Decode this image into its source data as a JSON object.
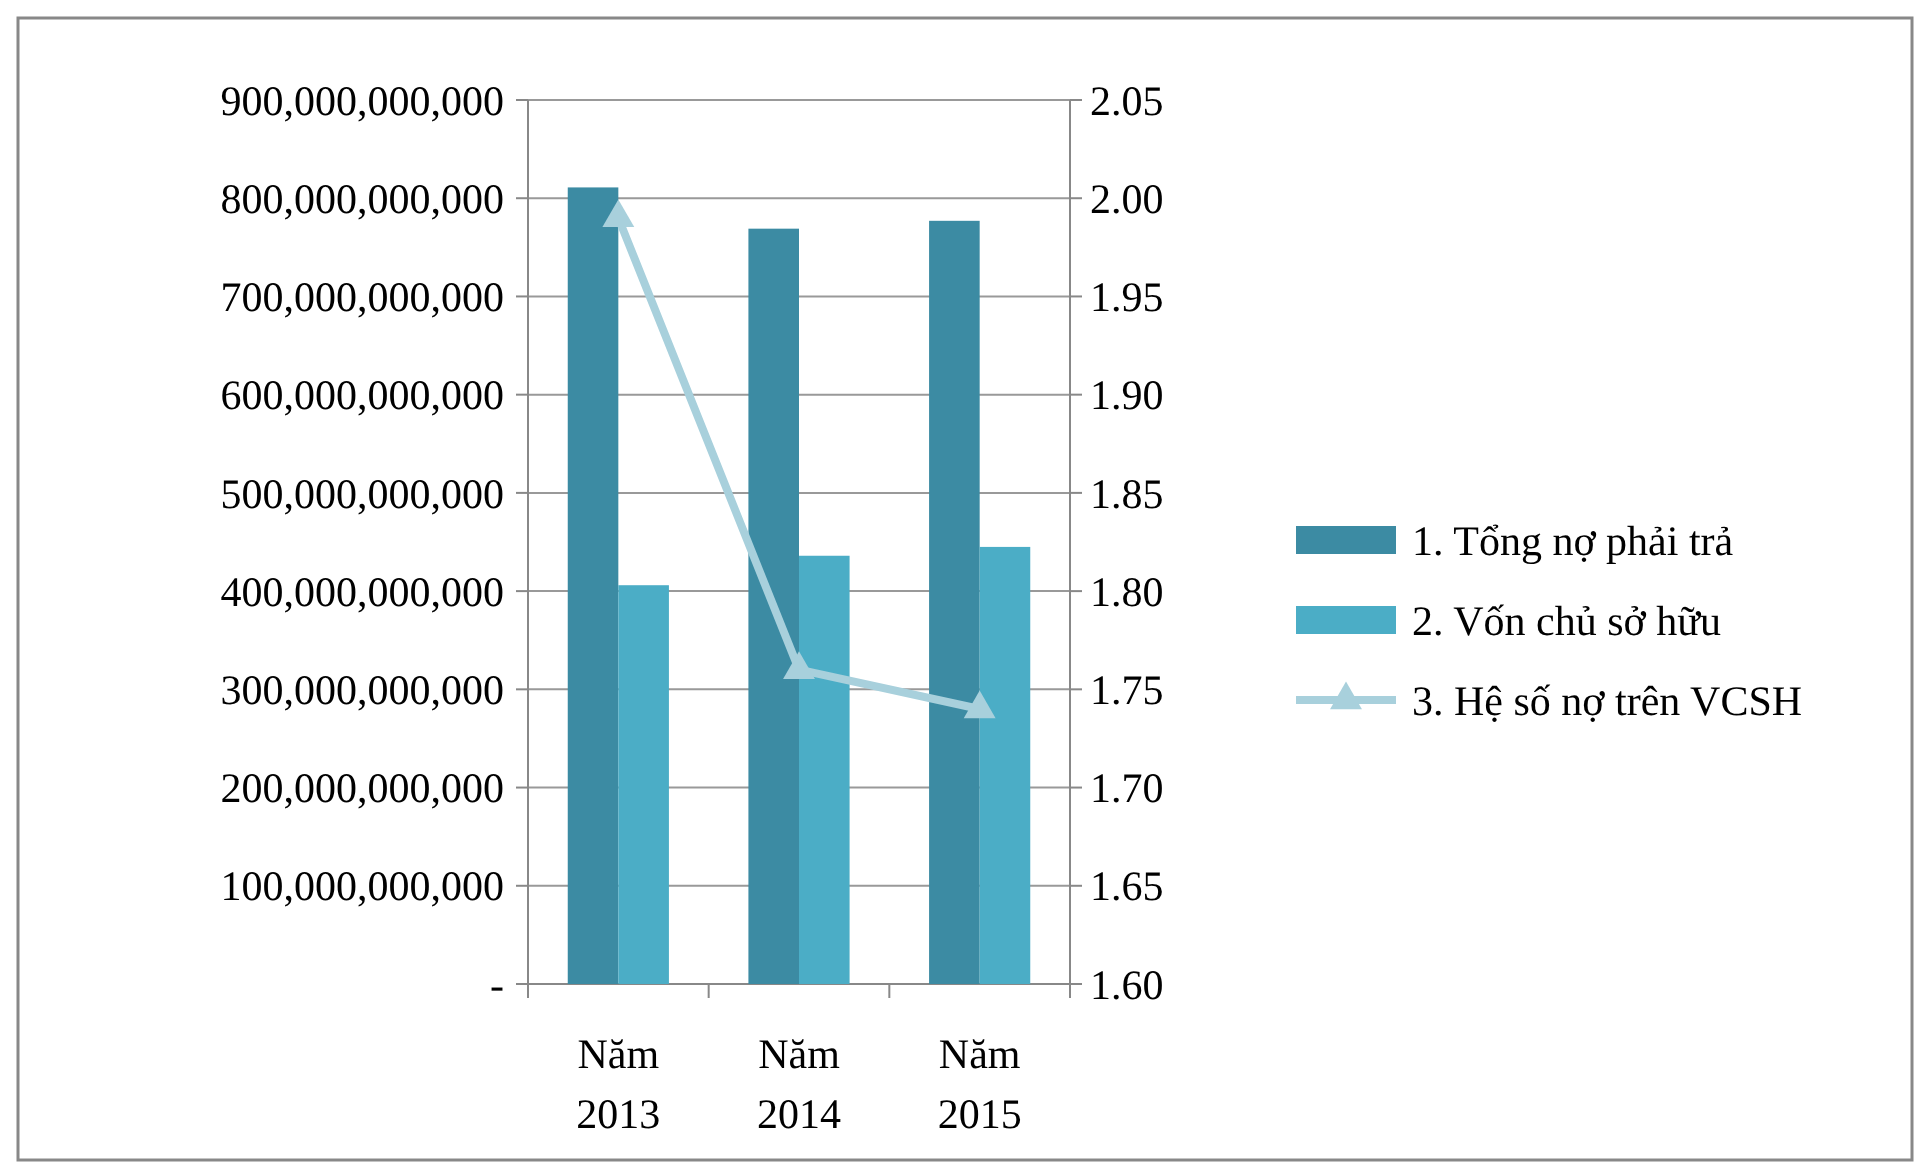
{
  "chart_data": {
    "type": "bar",
    "categories": [
      "Năm 2013",
      "Năm 2014",
      "Năm 2015"
    ],
    "series": [
      {
        "name": "1. Tổng nợ phải trả",
        "color": "#3c8ba3",
        "values": [
          811000000000,
          769000000000,
          777000000000
        ]
      },
      {
        "name": "2. Vốn chủ sở hữu",
        "color": "#4badc6",
        "values": [
          406000000000,
          436000000000,
          445000000000
        ]
      },
      {
        "name": "3. Hệ số nợ trên VCSH",
        "type": "line",
        "axis": "y2",
        "color": "#a8d0dc",
        "marker": "triangle",
        "values": [
          1.99,
          1.76,
          1.74
        ]
      }
    ],
    "ylim": [
      0,
      900000000000
    ],
    "yticks": [
      {
        "value": 0,
        "label": "-"
      },
      {
        "value": 100000000000,
        "label": "100,000,000,000"
      },
      {
        "value": 200000000000,
        "label": "200,000,000,000"
      },
      {
        "value": 300000000000,
        "label": "300,000,000,000"
      },
      {
        "value": 400000000000,
        "label": "400,000,000,000"
      },
      {
        "value": 500000000000,
        "label": "500,000,000,000"
      },
      {
        "value": 600000000000,
        "label": "600,000,000,000"
      },
      {
        "value": 700000000000,
        "label": "700,000,000,000"
      },
      {
        "value": 800000000000,
        "label": "800,000,000,000"
      },
      {
        "value": 900000000000,
        "label": "900,000,000,000"
      }
    ],
    "y2lim": [
      1.6,
      2.05
    ],
    "y2ticks": [
      {
        "value": 1.6,
        "label": "1.60"
      },
      {
        "value": 1.65,
        "label": "1.65"
      },
      {
        "value": 1.7,
        "label": "1.70"
      },
      {
        "value": 1.75,
        "label": "1.75"
      },
      {
        "value": 1.8,
        "label": "1.80"
      },
      {
        "value": 1.85,
        "label": "1.85"
      },
      {
        "value": 1.9,
        "label": "1.90"
      },
      {
        "value": 1.95,
        "label": "1.95"
      },
      {
        "value": 2,
        "label": "2.00"
      },
      {
        "value": 2.05,
        "label": "2.05"
      }
    ],
    "grid": "y",
    "legend": "right"
  }
}
